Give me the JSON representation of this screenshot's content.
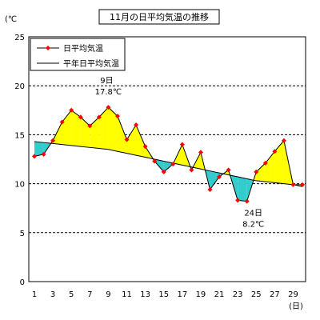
{
  "chart_data": {
    "type": "line",
    "title": "11月の日平均気温の推移",
    "y_unit_label": "(℃",
    "x_unit_label": "(日)",
    "ylim": [
      0,
      25
    ],
    "yticks": [
      0,
      5,
      10,
      15,
      20,
      25
    ],
    "xlim": [
      1,
      30
    ],
    "xtick_labels": [
      "1",
      "3",
      "5",
      "7",
      "9",
      "11",
      "13",
      "15",
      "17",
      "19",
      "21",
      "23",
      "25",
      "27",
      "29"
    ],
    "xtick_values": [
      1,
      3,
      5,
      7,
      9,
      11,
      13,
      15,
      17,
      19,
      21,
      23,
      25,
      27,
      29
    ],
    "grid": "horizontal-dashed",
    "legend_position": "top-left",
    "colors": {
      "above": "#ffff00",
      "below": "#33cccc",
      "daily_line": "#000000",
      "daily_marker": "#ff0000",
      "normal_line": "#000000",
      "grid": "#000000"
    },
    "series": [
      {
        "name": "日平均気温",
        "x": [
          1,
          2,
          3,
          4,
          5,
          6,
          7,
          8,
          9,
          10,
          11,
          12,
          13,
          14,
          15,
          16,
          17,
          18,
          19,
          20,
          21,
          22,
          23,
          24,
          25,
          26,
          27,
          28,
          29,
          30
        ],
        "values": [
          12.8,
          13.0,
          14.4,
          16.3,
          17.5,
          16.8,
          15.9,
          16.8,
          17.8,
          16.9,
          14.5,
          16.0,
          13.8,
          12.3,
          11.2,
          12.0,
          14.0,
          11.4,
          13.2,
          9.4,
          10.7,
          11.4,
          8.3,
          8.2,
          11.2,
          12.1,
          13.3,
          14.4,
          9.9,
          9.9
        ]
      },
      {
        "name": "平年日平均気温",
        "x": [
          1,
          2,
          3,
          4,
          5,
          6,
          7,
          8,
          9,
          10,
          11,
          12,
          13,
          14,
          15,
          16,
          17,
          18,
          19,
          20,
          21,
          22,
          23,
          24,
          25,
          26,
          27,
          28,
          29,
          30
        ],
        "values": [
          14.3,
          14.2,
          14.1,
          14.0,
          13.9,
          13.8,
          13.7,
          13.6,
          13.5,
          13.3,
          13.1,
          12.9,
          12.7,
          12.5,
          12.3,
          12.1,
          11.9,
          11.7,
          11.5,
          11.3,
          11.1,
          10.9,
          10.7,
          10.5,
          10.3,
          10.2,
          10.1,
          10.0,
          9.9,
          9.7
        ]
      }
    ],
    "annotations": [
      {
        "x": 9,
        "y": 17.8,
        "label_day": "9日",
        "label_value": "17.8℃"
      },
      {
        "x": 24,
        "y": 8.2,
        "label_day": "24日",
        "label_value": "8.2℃"
      }
    ]
  }
}
